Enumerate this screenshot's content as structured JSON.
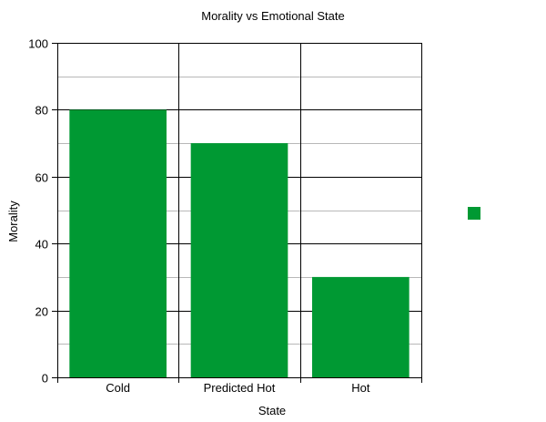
{
  "chart_data": {
    "type": "bar",
    "title": "Morality vs Emotional State",
    "xlabel": "State",
    "ylabel": "Morality",
    "categories": [
      "Cold",
      "Predicted Hot",
      "Hot"
    ],
    "series": [
      {
        "values": [
          80,
          70,
          30
        ],
        "color": "#009933"
      }
    ],
    "ylim": [
      0,
      100
    ],
    "yticks": [
      0,
      20,
      40,
      60,
      80,
      100
    ],
    "ytick_labels": [
      "0",
      "20",
      "40",
      "60",
      "80",
      "100"
    ],
    "grid": true,
    "legend": "right"
  }
}
